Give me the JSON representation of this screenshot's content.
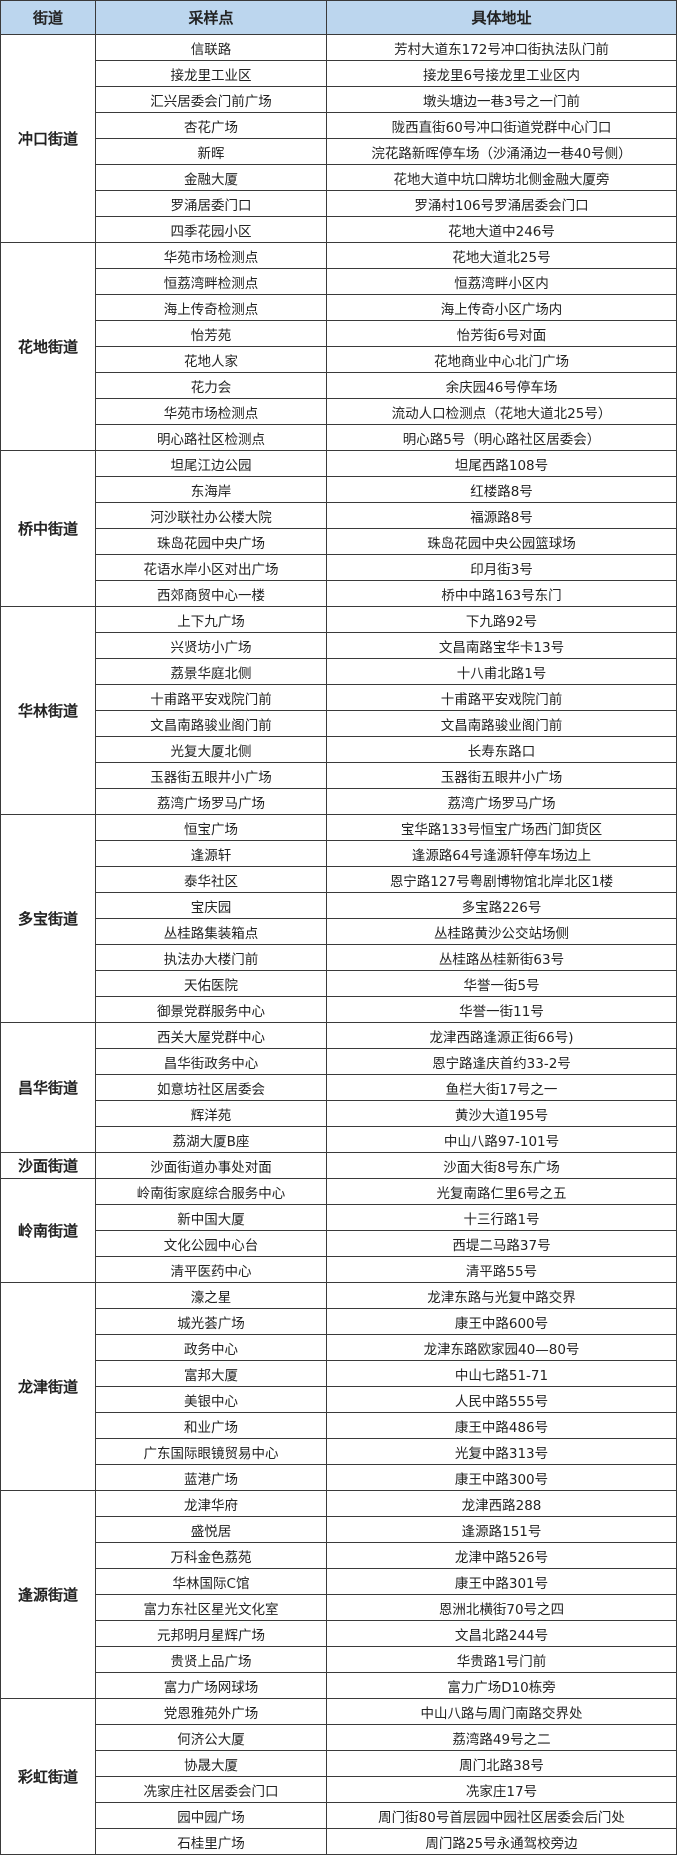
{
  "header": {
    "street": "街道",
    "site": "采样点",
    "address": "具体地址"
  },
  "header_bg": "#bcd6ee",
  "groups": [
    {
      "street": "冲口街道",
      "rows": [
        [
          "信联路",
          "芳村大道东172号冲口街执法队门前"
        ],
        [
          "接龙里工业区",
          "接龙里6号接龙里工业区内"
        ],
        [
          "汇兴居委会门前广场",
          "墩头塘边一巷3号之一门前"
        ],
        [
          "杏花广场",
          "陇西直街60号冲口街道党群中心门口"
        ],
        [
          "新晖",
          "浣花路新晖停车场（沙涌涌边一巷40号侧）"
        ],
        [
          "金融大厦",
          "花地大道中坑口牌坊北侧金融大厦旁"
        ],
        [
          "罗涌居委门口",
          "罗涌村106号罗涌居委会门口"
        ],
        [
          "四季花园小区",
          "花地大道中246号"
        ]
      ]
    },
    {
      "street": "花地街道",
      "rows": [
        [
          "华苑市场检测点",
          "花地大道北25号"
        ],
        [
          "恒荔湾畔检测点",
          "恒荔湾畔小区内"
        ],
        [
          "海上传奇检测点",
          "海上传奇小区广场内"
        ],
        [
          "怡芳苑",
          "怡芳街6号对面"
        ],
        [
          "花地人家",
          "花地商业中心北门广场"
        ],
        [
          "花力会",
          "余庆园46号停车场"
        ],
        [
          "华苑市场检测点",
          "流动人口检测点（花地大道北25号）"
        ],
        [
          "明心路社区检测点",
          "明心路5号（明心路社区居委会）"
        ]
      ]
    },
    {
      "street": "桥中街道",
      "rows": [
        [
          "坦尾江边公园",
          "坦尾西路108号"
        ],
        [
          "东海岸",
          "红楼路8号"
        ],
        [
          "河沙联社办公楼大院",
          "福源路8号"
        ],
        [
          "珠岛花园中央广场",
          "珠岛花园中央公园篮球场"
        ],
        [
          "花语水岸小区对出广场",
          "印月街3号"
        ],
        [
          "西郊商贸中心一楼",
          "桥中中路163号东门"
        ]
      ]
    },
    {
      "street": "华林街道",
      "rows": [
        [
          "上下九广场",
          "下九路92号"
        ],
        [
          "兴贤坊小广场",
          "文昌南路宝华卡13号"
        ],
        [
          "荔景华庭北侧",
          "十八甫北路1号"
        ],
        [
          "十甫路平安戏院门前",
          "十甫路平安戏院门前"
        ],
        [
          "文昌南路骏业阁门前",
          "文昌南路骏业阁门前"
        ],
        [
          "光复大厦北侧",
          "长寿东路口"
        ],
        [
          "玉器街五眼井小广场",
          "玉器街五眼井小广场"
        ],
        [
          "荔湾广场罗马广场",
          "荔湾广场罗马广场"
        ]
      ]
    },
    {
      "street": "多宝街道",
      "rows": [
        [
          "恒宝广场",
          "宝华路133号恒宝广场西门卸货区"
        ],
        [
          "逢源轩",
          "逢源路64号逢源轩停车场边上"
        ],
        [
          "泰华社区",
          "恩宁路127号粤剧博物馆北岸北区1楼"
        ],
        [
          "宝庆园",
          "多宝路226号"
        ],
        [
          "丛桂路集装箱点",
          "丛桂路黄沙公交站场侧"
        ],
        [
          "执法办大楼门前",
          "丛桂路丛桂新街63号"
        ],
        [
          "天佑医院",
          "华誉一街5号"
        ],
        [
          "御景党群服务中心",
          "华誉一街11号"
        ]
      ]
    },
    {
      "street": "昌华街道",
      "rows": [
        [
          "西关大屋党群中心",
          "龙津西路逢源正街66号)"
        ],
        [
          "昌华街政务中心",
          "恩宁路逢庆首约33-2号"
        ],
        [
          "如意坊社区居委会",
          "鱼栏大街17号之一"
        ],
        [
          "辉洋苑",
          "黄沙大道195号"
        ],
        [
          "荔湖大厦B座",
          "中山八路97-101号"
        ]
      ]
    },
    {
      "street": "沙面街道",
      "rows": [
        [
          "沙面街道办事处对面",
          "沙面大街8号东广场"
        ]
      ]
    },
    {
      "street": "岭南街道",
      "rows": [
        [
          "岭南街家庭综合服务中心",
          "光复南路仁里6号之五"
        ],
        [
          "新中国大厦",
          "十三行路1号"
        ],
        [
          "文化公园中心台",
          "西堤二马路37号"
        ],
        [
          "清平医药中心",
          "清平路55号"
        ]
      ]
    },
    {
      "street": "龙津街道",
      "rows": [
        [
          "濠之星",
          "龙津东路与光复中路交界"
        ],
        [
          "城光荟广场",
          "康王中路600号"
        ],
        [
          "政务中心",
          "龙津东路欧家园40—80号"
        ],
        [
          "富邦大厦",
          "中山七路51-71"
        ],
        [
          "美银中心",
          "人民中路555号"
        ],
        [
          "和业广场",
          "康王中路486号"
        ],
        [
          "广东国际眼镜贸易中心",
          "光复中路313号"
        ],
        [
          "蓝港广场",
          "康王中路300号"
        ]
      ]
    },
    {
      "street": "逢源街道",
      "rows": [
        [
          "龙津华府",
          "龙津西路288"
        ],
        [
          "盛悦居",
          "逢源路151号"
        ],
        [
          "万科金色荔苑",
          "龙津中路526号"
        ],
        [
          "华林国际C馆",
          "康王中路301号"
        ],
        [
          "富力东社区星光文化室",
          "恩洲北横街70号之四"
        ],
        [
          "元邦明月星辉广场",
          "文昌北路244号"
        ],
        [
          "贵贤上品广场",
          "华贵路1号门前"
        ],
        [
          "富力广场网球场",
          "富力广场D10栋旁"
        ]
      ]
    },
    {
      "street": "彩虹街道",
      "rows": [
        [
          "党恩雅苑外广场",
          "中山八路与周门南路交界处"
        ],
        [
          "何济公大厦",
          "荔湾路49号之二"
        ],
        [
          "协晟大厦",
          "周门北路38号"
        ],
        [
          "冼家庄社区居委会门口",
          "冼家庄17号"
        ],
        [
          "园中园广场",
          "周门街80号首层园中园社区居委会后门处"
        ],
        [
          "石桂里广场",
          "周门路25号永通驾校旁边"
        ]
      ]
    }
  ]
}
